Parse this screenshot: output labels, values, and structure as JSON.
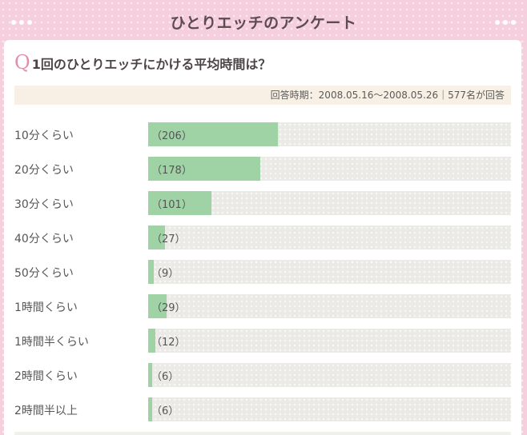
{
  "header": {
    "title": "ひとりエッチのアンケート"
  },
  "question": {
    "mark": "Q",
    "text": "1回のひとりエッチにかける平均時間は？"
  },
  "info": {
    "text": "回答時期：2008.05.16〜2008.05.26｜577名が回答"
  },
  "colors": {
    "bar_fill": "#9fd3a6",
    "track": "#eceae6",
    "accent": "#e58cb1",
    "background": "#f6cfdf"
  },
  "chart_data": {
    "type": "bar",
    "orientation": "horizontal",
    "max_scale": 577,
    "categories": [
      "10分くらい",
      "20分くらい",
      "30分くらい",
      "40分くらい",
      "50分くらい",
      "1時間くらい",
      "1時間半くらい",
      "2時間くらい",
      "2時間半以上"
    ],
    "values": [
      206,
      178,
      101,
      27,
      9,
      29,
      12,
      6,
      6
    ],
    "count_labels": [
      "（206）",
      "（178）",
      "（101）",
      "（27）",
      "（9）",
      "（29）",
      "（12）",
      "（6）",
      "（6）"
    ]
  }
}
